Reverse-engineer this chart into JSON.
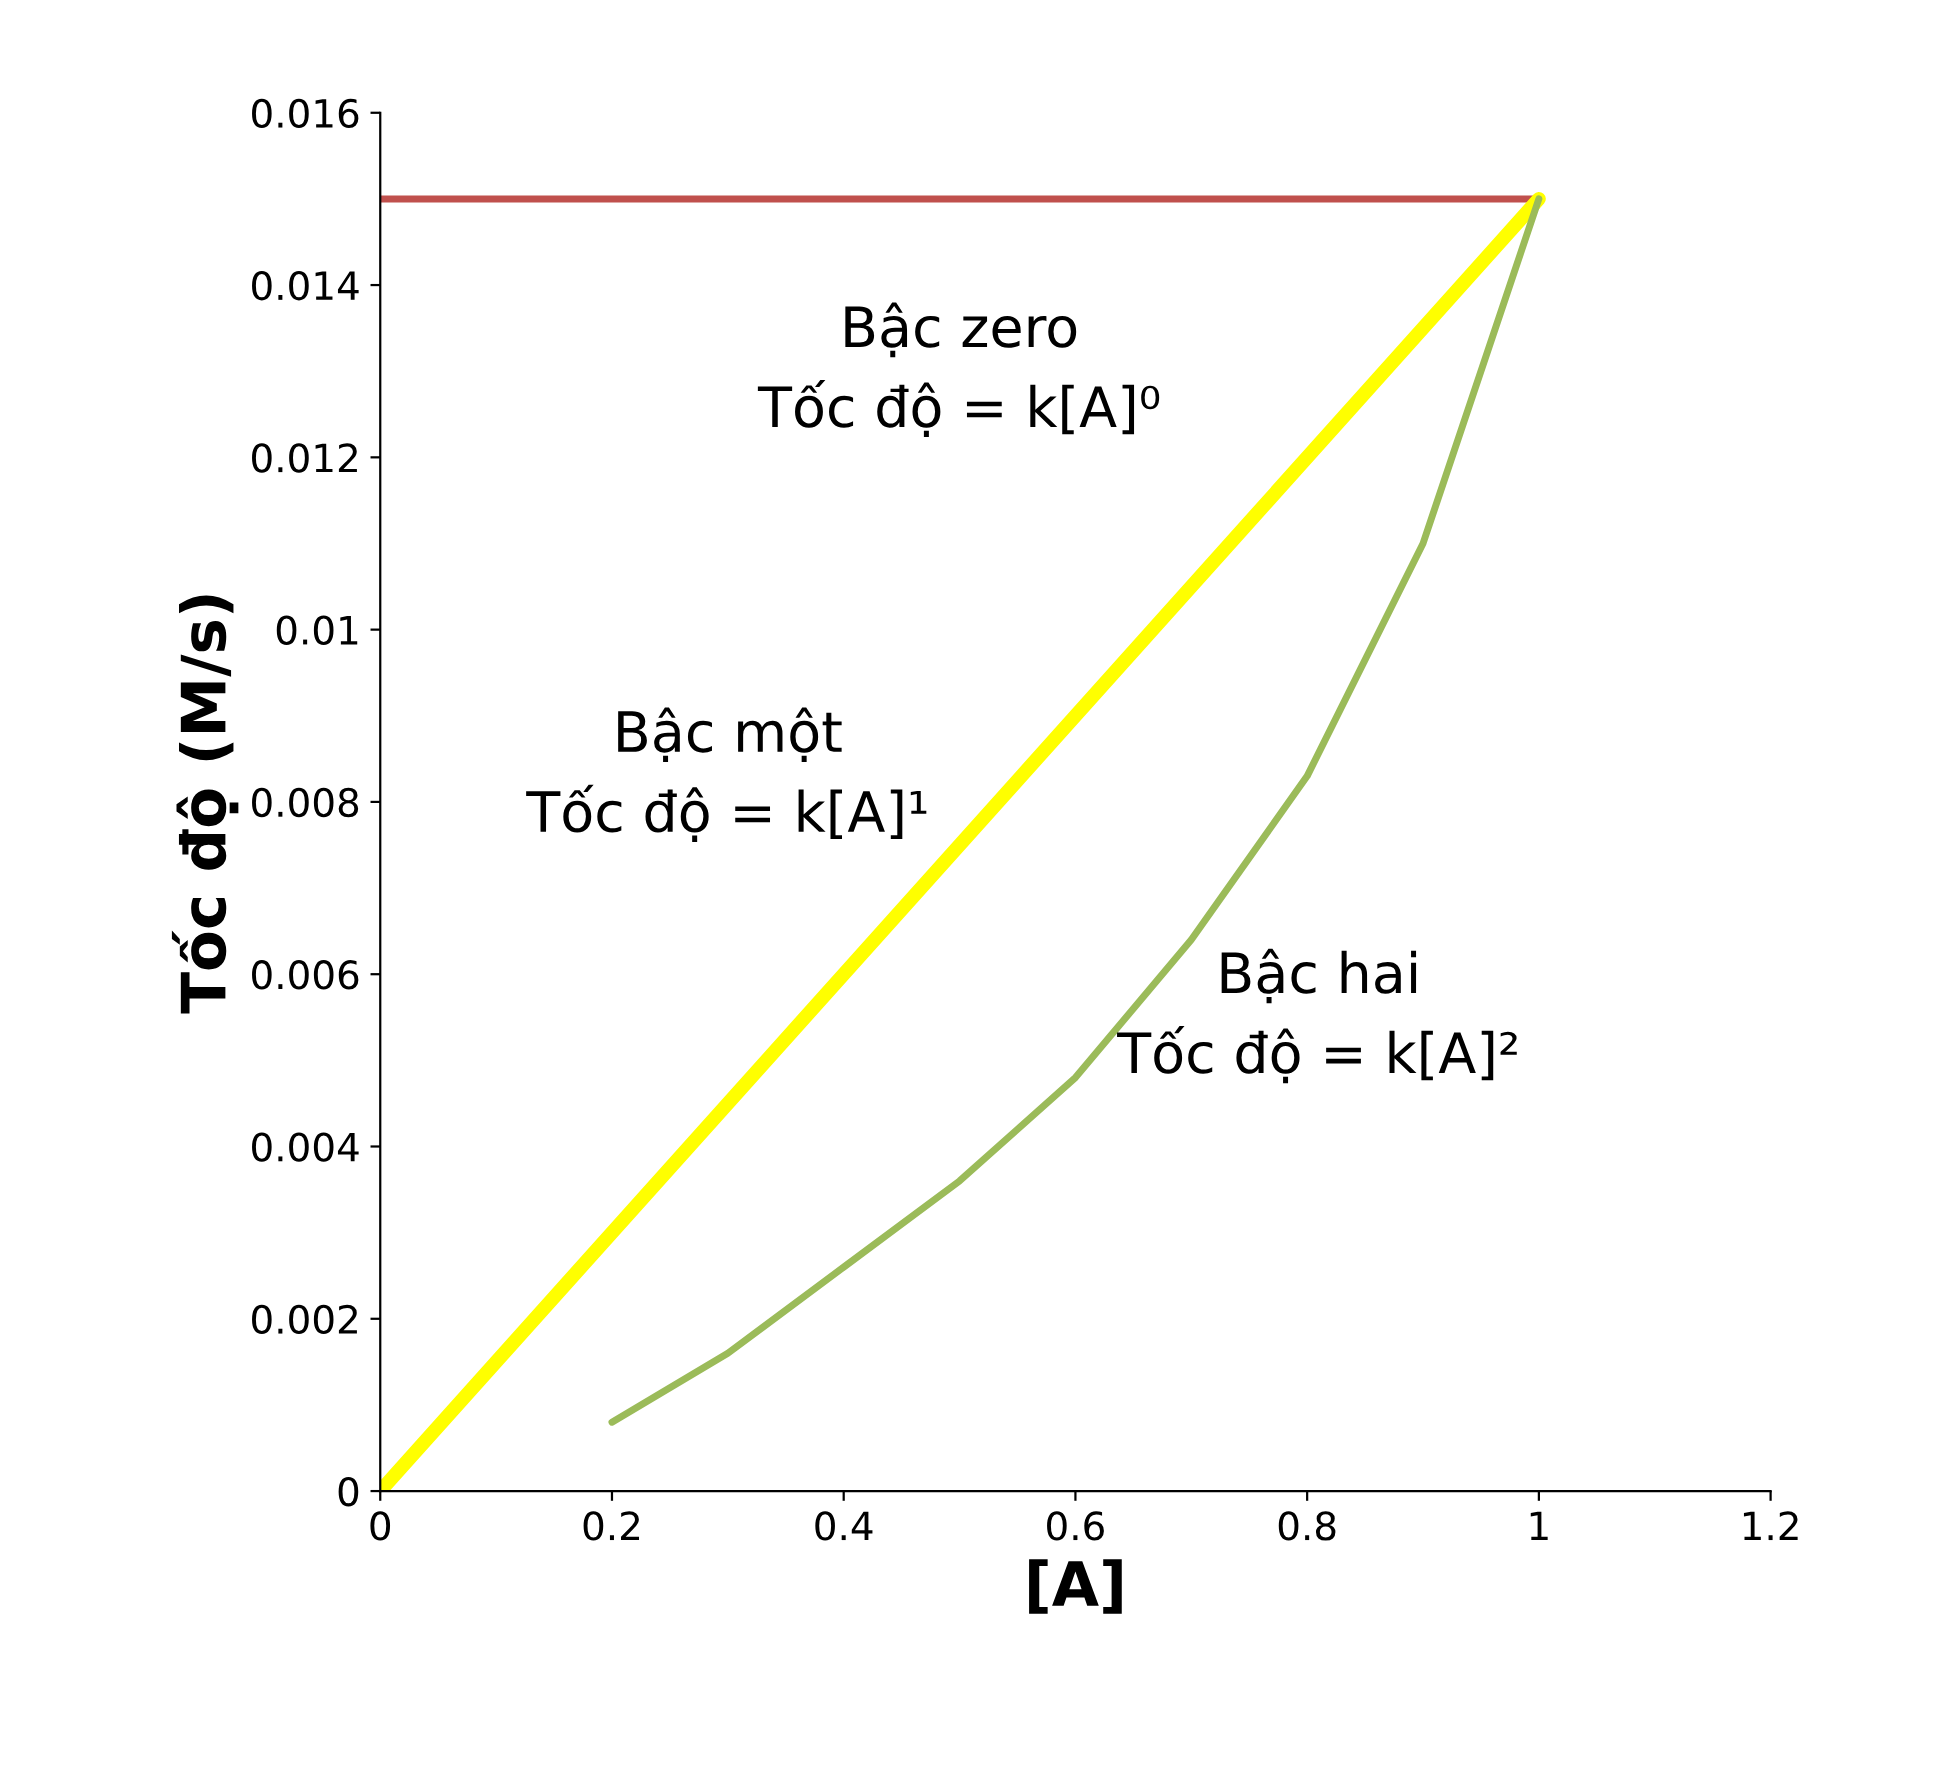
{
  "chart_data": {
    "type": "line",
    "xlabel": "[A]",
    "ylabel": "Tốc độ (M/s)",
    "series": [
      {
        "color": "#c0504d",
        "x": [
          0,
          1
        ],
        "values": [
          0.015,
          0.015
        ]
      },
      {
        "color": "#ffff00",
        "x": [
          0,
          1
        ],
        "values": [
          0,
          0.015
        ]
      },
      {
        "color": "#9bbb59",
        "x": [
          0.2,
          0.3,
          0.4,
          0.5,
          0.6,
          0.7,
          0.8,
          0.9,
          1.0
        ],
        "values": [
          0.0008,
          0.0016,
          0.0026,
          0.0036,
          0.0048,
          0.0064,
          0.0083,
          0.011,
          0.015
        ]
      }
    ],
    "xlim": [
      0,
      1.2
    ],
    "xticks": [
      0,
      0.2,
      0.4,
      0.6,
      0.8,
      1,
      1.2
    ],
    "ylim": [
      0,
      0.016
    ],
    "yticks": [
      0,
      0.002,
      0.004,
      0.006,
      0.008,
      0.01,
      0.012,
      0.014,
      0.016
    ],
    "annotations": [
      "Bậc zero\nTốc độ = k[A]⁰",
      "Bậc một\nTốc độ = k[A]¹",
      "Bậc hai\nTốc độ = k[A]²"
    ]
  }
}
